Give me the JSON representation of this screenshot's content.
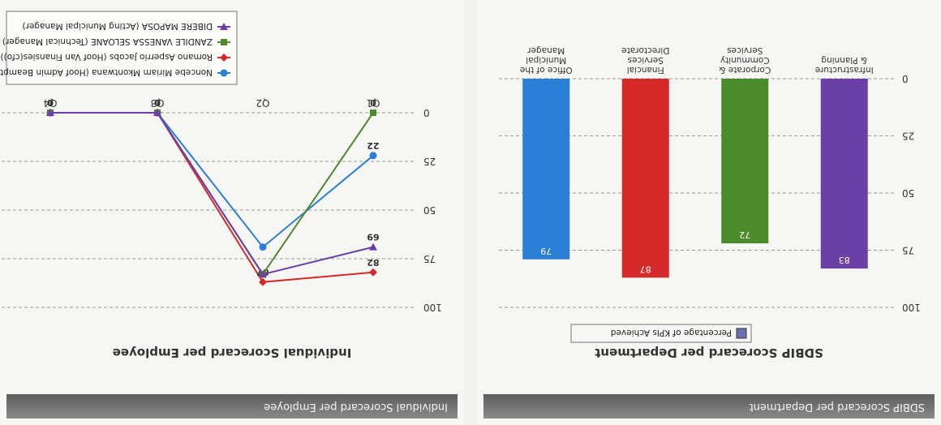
{
  "panels": {
    "department": {
      "header": "SDBIP Scorecard per Department",
      "title": "SDBIP Scorecard per Department"
    },
    "employee": {
      "header": "Individual Scorecard per Employee",
      "title": "Individual Scorecard per Employee"
    }
  },
  "chart_data": [
    {
      "type": "bar",
      "title": "SDBIP Scorecard per Department",
      "categories": [
        "Office of the Municipal Manager",
        "Financial Services Directorate",
        "Corporate & Community Services",
        "Infrastructure & Planning"
      ],
      "series": [
        {
          "name": "Percentage of KPIs Achieved",
          "values": [
            79,
            87,
            72,
            83
          ],
          "colors": [
            "#2b7fd4",
            "#d42a2a",
            "#4c8a2c",
            "#6a3fa6"
          ]
        }
      ],
      "yticks": [
        0,
        25,
        50,
        75,
        100
      ],
      "ylim": [
        0,
        100
      ],
      "grid": true,
      "legend": "top"
    },
    {
      "type": "line",
      "title": "Individual Scorecard per Employee",
      "categories": [
        "Q1",
        "Q2",
        "Q3",
        "Q4"
      ],
      "series": [
        {
          "name": "Noncebe Miriam Mkontwana (Hoof Admin Beampte)",
          "values": [
            22,
            69,
            0,
            0
          ],
          "labels": [
            "22",
            "",
            "0",
            "0"
          ],
          "color": "#2b7fd4",
          "marker": "circle"
        },
        {
          "name": "Romano Asperrio Jacobs (Hoof Van Finansies(cfo))",
          "values": [
            82,
            87,
            0,
            0
          ],
          "labels": [
            "82",
            "87",
            "0",
            "0"
          ],
          "color": "#d42a2a",
          "marker": "diamond"
        },
        {
          "name": "ZANDILE VANESSA SELOANE (Technical Manager)",
          "values": [
            0,
            83,
            0,
            0
          ],
          "labels": [
            "0",
            "",
            "0",
            "0"
          ],
          "color": "#4c8a2c",
          "marker": "square"
        },
        {
          "name": "DIBERE MAPOSA (Acting Municipal Manager)",
          "values": [
            69,
            83,
            0,
            0
          ],
          "labels": [
            "69",
            "",
            "0",
            "0"
          ],
          "color": "#6a3fa6",
          "marker": "triangle"
        }
      ],
      "yticks": [
        0,
        25,
        50,
        75,
        100
      ],
      "ylim": [
        0,
        100
      ],
      "grid": true,
      "legend": "top-right"
    }
  ]
}
